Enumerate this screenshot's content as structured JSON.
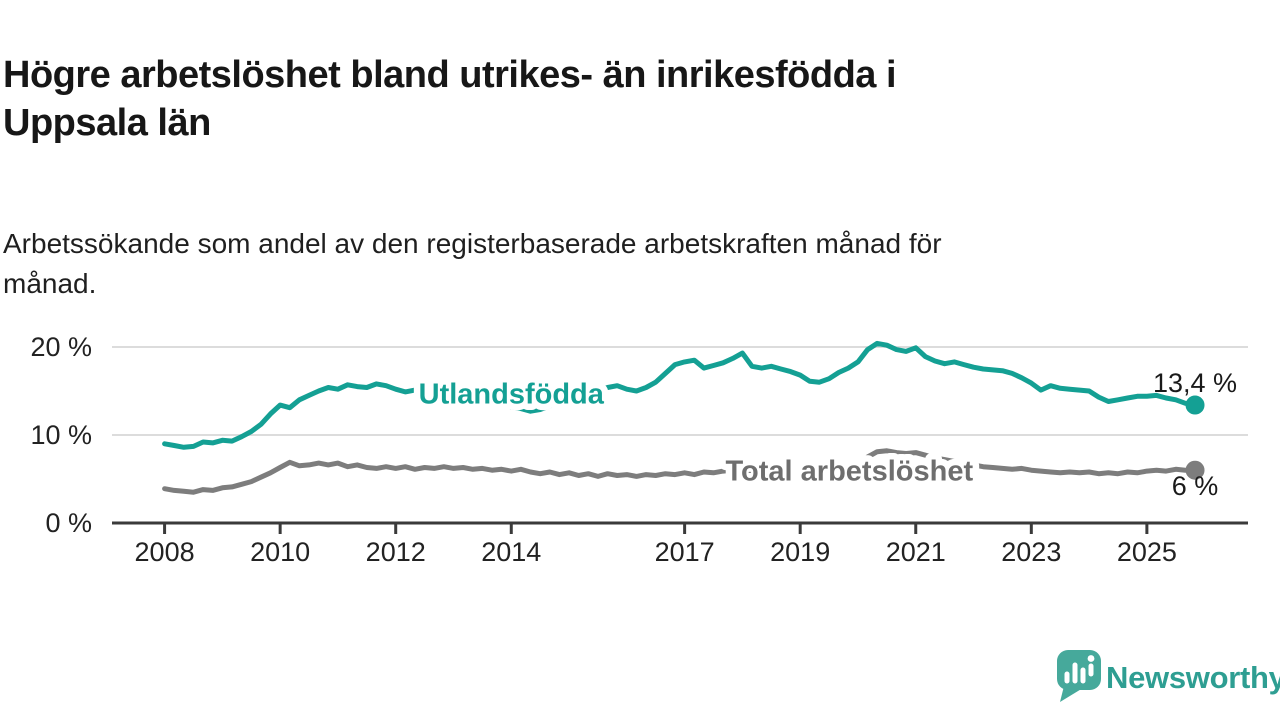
{
  "header": {
    "title_lines": [
      "Högre arbetslöshet bland utrikes- än inrikesfödda i",
      "Uppsala län"
    ],
    "subtitle_lines": [
      "Arbetssökande som andel av den registerbaserade arbetskraften månad för",
      "månad."
    ]
  },
  "chart_data": {
    "type": "line",
    "title": "Högre arbetslöshet bland utrikes- än inrikesfödda i Uppsala län",
    "subtitle": "Arbetssökande som andel av den registerbaserade arbetskraften månad för månad.",
    "unit": "%",
    "grid": "horizontal",
    "xlim": [
      2007.09,
      2026.75
    ],
    "ylim": [
      0,
      24.2
    ],
    "yticks": [
      {
        "value": 0,
        "label": "0 %"
      },
      {
        "value": 10,
        "label": "10 %"
      },
      {
        "value": 20,
        "label": "20 %"
      }
    ],
    "xticks": [
      {
        "value": 2008,
        "label": "2008"
      },
      {
        "value": 2010,
        "label": "2010"
      },
      {
        "value": 2012,
        "label": "2012"
      },
      {
        "value": 2014,
        "label": "2014"
      },
      {
        "value": 2017,
        "label": "2017"
      },
      {
        "value": 2019,
        "label": "2019"
      },
      {
        "value": 2021,
        "label": "2021"
      },
      {
        "value": 2023,
        "label": "2023"
      },
      {
        "value": 2025,
        "label": "2025"
      }
    ],
    "x_start": 2008.0,
    "x_step_years": 0.166667,
    "series": [
      {
        "name": "Utlandsfödda",
        "color": "#14a094",
        "label_color": "#14a094",
        "inline_label": {
          "text": "Utlandsfödda",
          "x": 2014.0,
          "y": 13.6
        },
        "end_label": {
          "text": "13,4 %",
          "dy": -13
        },
        "end_value": "13,4 %",
        "values": [
          9.0,
          8.8,
          8.6,
          8.7,
          9.2,
          9.1,
          9.4,
          9.3,
          9.8,
          10.4,
          11.2,
          12.4,
          13.4,
          13.1,
          14.0,
          14.5,
          15.0,
          15.4,
          15.2,
          15.7,
          15.5,
          15.4,
          15.8,
          15.6,
          15.2,
          14.9,
          15.1,
          14.8,
          14.6,
          14.7,
          14.4,
          14.2,
          14.0,
          13.8,
          13.6,
          13.4,
          13.2,
          13.0,
          12.7,
          12.9,
          13.3,
          13.7,
          14.1,
          14.5,
          14.8,
          15.1,
          15.4,
          15.6,
          15.2,
          15.0,
          15.4,
          16.0,
          17.0,
          18.0,
          18.3,
          18.5,
          17.6,
          17.9,
          18.2,
          18.7,
          19.3,
          17.8,
          17.6,
          17.8,
          17.5,
          17.2,
          16.8,
          16.1,
          16.0,
          16.4,
          17.1,
          17.6,
          18.3,
          19.7,
          20.4,
          20.2,
          19.7,
          19.5,
          19.9,
          18.9,
          18.4,
          18.1,
          18.3,
          18.0,
          17.7,
          17.5,
          17.4,
          17.3,
          17.0,
          16.5,
          15.9,
          15.1,
          15.6,
          15.3,
          15.2,
          15.1,
          15.0,
          14.3,
          13.8,
          14.0,
          14.2,
          14.4,
          14.4,
          14.5,
          14.2,
          14.0,
          13.6,
          13.4
        ]
      },
      {
        "name": "Total arbetslöshet",
        "color": "#7d7d7d",
        "label_color": "#6e6e6e",
        "inline_label": {
          "text": "Total arbetslöshet",
          "x": 2019.85,
          "y": 4.85
        },
        "end_label": {
          "text": "6 %",
          "dy": 25
        },
        "end_value": "6 %",
        "values": [
          3.9,
          3.7,
          3.6,
          3.5,
          3.8,
          3.7,
          4.0,
          4.1,
          4.4,
          4.7,
          5.2,
          5.7,
          6.3,
          6.9,
          6.5,
          6.6,
          6.8,
          6.6,
          6.8,
          6.4,
          6.6,
          6.3,
          6.2,
          6.4,
          6.2,
          6.4,
          6.1,
          6.3,
          6.2,
          6.4,
          6.2,
          6.3,
          6.1,
          6.2,
          6.0,
          6.1,
          5.9,
          6.1,
          5.8,
          5.6,
          5.8,
          5.5,
          5.7,
          5.4,
          5.6,
          5.3,
          5.6,
          5.4,
          5.5,
          5.3,
          5.5,
          5.4,
          5.6,
          5.5,
          5.7,
          5.5,
          5.8,
          5.7,
          5.9,
          6.0,
          5.9,
          6.0,
          5.9,
          6.0,
          5.9,
          6.0,
          6.0,
          6.1,
          6.0,
          6.2,
          6.3,
          6.4,
          6.6,
          7.5,
          8.1,
          8.2,
          8.0,
          7.9,
          8.0,
          7.7,
          7.4,
          7.2,
          7.0,
          6.8,
          6.6,
          6.4,
          6.3,
          6.2,
          6.1,
          6.2,
          6.0,
          5.9,
          5.8,
          5.7,
          5.8,
          5.7,
          5.8,
          5.6,
          5.7,
          5.6,
          5.8,
          5.7,
          5.9,
          6.0,
          5.9,
          6.1,
          6.0,
          6.0
        ]
      }
    ]
  },
  "footer": {
    "brand": "Newsworthy",
    "logo_color": "#46a99b",
    "brand_color": "#2e9e92"
  }
}
